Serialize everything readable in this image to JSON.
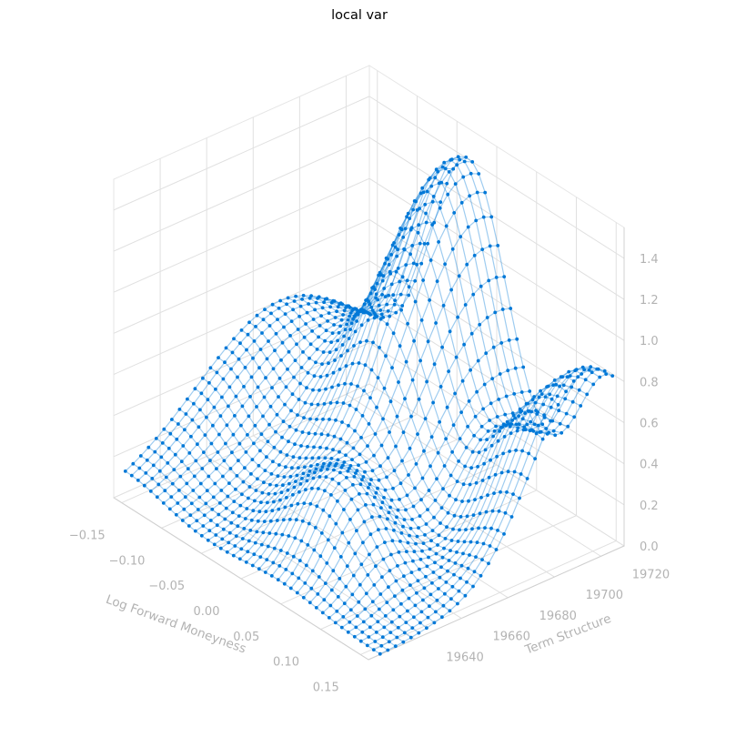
{
  "chart_data": {
    "type": "surface3d",
    "title": "local var",
    "xlabel": "Log Forward Moneyness",
    "ylabel": "Term Structure",
    "zlabel": "",
    "xlim": [
      -0.16,
      0.16
    ],
    "ylim": [
      19620,
      19730
    ],
    "zlim": [
      0.0,
      1.55
    ],
    "xticks": [
      "−0.15",
      "−0.10",
      "−0.05",
      "0.00",
      "0.05",
      "0.10",
      "0.15"
    ],
    "yticks": [
      "19640",
      "19660",
      "19680",
      "19700",
      "19720"
    ],
    "zticks": [
      "0.0",
      "0.2",
      "0.4",
      "0.6",
      "0.8",
      "1.0",
      "1.2",
      "1.4"
    ],
    "series_color": "#0078d7",
    "grid": true,
    "x_range": [
      -0.16,
      0.16
    ],
    "y_range": [
      19625,
      19725
    ],
    "grid_n": [
      41,
      31
    ],
    "surface_peaks": [
      {
        "x": -0.02,
        "y": 19720,
        "z": 1.48
      },
      {
        "x": 0.16,
        "y": 19715,
        "z": 0.92
      },
      {
        "x": -0.16,
        "y": 19690,
        "z": 0.58
      },
      {
        "x": 0.04,
        "y": 19650,
        "z": 0.38
      },
      {
        "x": 0.1,
        "y": 19700,
        "z": 0.22
      }
    ]
  }
}
